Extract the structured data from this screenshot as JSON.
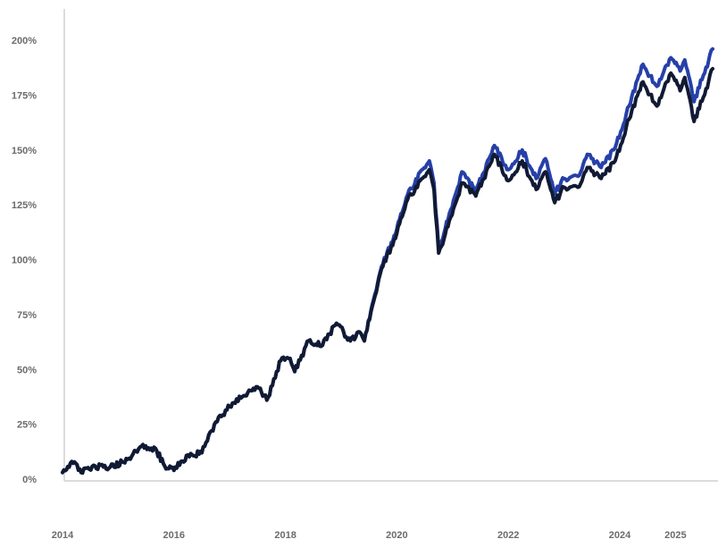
{
  "chart_data": {
    "type": "line",
    "title": "",
    "xlabel": "",
    "ylabel": "",
    "ylim": [
      0,
      200
    ],
    "xlim": [
      "2014-01",
      "2025-09"
    ],
    "grid": false,
    "legend": "none",
    "y_ticks": [
      {
        "value": 0,
        "label": "0%"
      },
      {
        "value": 25,
        "label": "25%"
      },
      {
        "value": 50,
        "label": "50%"
      },
      {
        "value": 75,
        "label": "75%"
      },
      {
        "value": 100,
        "label": "100%"
      },
      {
        "value": 125,
        "label": "125%"
      },
      {
        "value": 150,
        "label": "150%"
      },
      {
        "value": 175,
        "label": "175%"
      },
      {
        "value": 200,
        "label": "200%"
      }
    ],
    "x_ticks": [
      {
        "value": "2014-01",
        "label": "2014"
      },
      {
        "value": "2016-01",
        "label": "2016"
      },
      {
        "value": "2018-01",
        "label": "2018"
      },
      {
        "value": "2020-01",
        "label": "2020"
      },
      {
        "value": "2022-01",
        "label": "2022"
      },
      {
        "value": "2024-01",
        "label": "2024"
      },
      {
        "value": "2025-01",
        "label": "2025"
      }
    ],
    "series": [
      {
        "color": "#2640a8",
        "points": [
          [
            "2014-01",
            3
          ],
          [
            "2014-03",
            8
          ],
          [
            "2014-05",
            3
          ],
          [
            "2014-08",
            6
          ],
          [
            "2014-11",
            5
          ],
          [
            "2015-03",
            9
          ],
          [
            "2015-06",
            15
          ],
          [
            "2015-09",
            14
          ],
          [
            "2015-11",
            6
          ],
          [
            "2016-01",
            4
          ],
          [
            "2016-04",
            11
          ],
          [
            "2016-07",
            12
          ],
          [
            "2016-10",
            26
          ],
          [
            "2017-01",
            33
          ],
          [
            "2017-04",
            38
          ],
          [
            "2017-07",
            42
          ],
          [
            "2017-09",
            36
          ],
          [
            "2017-12",
            54
          ],
          [
            "2018-02",
            55
          ],
          [
            "2018-03",
            49
          ],
          [
            "2018-06",
            63
          ],
          [
            "2018-09",
            61
          ],
          [
            "2018-12",
            71
          ],
          [
            "2019-03",
            63
          ],
          [
            "2019-05",
            67
          ],
          [
            "2019-06",
            63
          ],
          [
            "2019-08",
            82
          ],
          [
            "2019-10",
            98
          ],
          [
            "2020-01",
            114
          ],
          [
            "2020-03",
            128
          ],
          [
            "2020-06",
            140
          ],
          [
            "2020-08",
            145
          ],
          [
            "2020-09",
            135
          ],
          [
            "2020-10",
            105
          ],
          [
            "2020-12",
            118
          ],
          [
            "2021-03",
            140
          ],
          [
            "2021-06",
            131
          ],
          [
            "2021-10",
            152
          ],
          [
            "2022-01",
            141
          ],
          [
            "2022-04",
            150
          ],
          [
            "2022-07",
            137
          ],
          [
            "2022-09",
            146
          ],
          [
            "2022-11",
            130
          ],
          [
            "2023-01",
            137
          ],
          [
            "2023-04",
            138
          ],
          [
            "2023-06",
            148
          ],
          [
            "2023-09",
            142
          ],
          [
            "2023-12",
            151
          ],
          [
            "2024-03",
            170
          ],
          [
            "2024-06",
            189
          ],
          [
            "2024-09",
            179
          ],
          [
            "2024-12",
            192
          ],
          [
            "2025-02",
            186
          ],
          [
            "2025-03",
            191
          ],
          [
            "2025-05",
            172
          ],
          [
            "2025-07",
            184
          ],
          [
            "2025-09",
            196
          ]
        ]
      },
      {
        "color": "#111a33",
        "points": [
          [
            "2014-01",
            3
          ],
          [
            "2014-03",
            8
          ],
          [
            "2014-05",
            3
          ],
          [
            "2014-08",
            6
          ],
          [
            "2014-11",
            5
          ],
          [
            "2015-03",
            9
          ],
          [
            "2015-06",
            15
          ],
          [
            "2015-09",
            14
          ],
          [
            "2015-11",
            6
          ],
          [
            "2016-01",
            4
          ],
          [
            "2016-04",
            11
          ],
          [
            "2016-07",
            12
          ],
          [
            "2016-10",
            26
          ],
          [
            "2017-01",
            33
          ],
          [
            "2017-04",
            38
          ],
          [
            "2017-07",
            42
          ],
          [
            "2017-09",
            36
          ],
          [
            "2017-12",
            54
          ],
          [
            "2018-02",
            55
          ],
          [
            "2018-03",
            49
          ],
          [
            "2018-06",
            63
          ],
          [
            "2018-09",
            61
          ],
          [
            "2018-12",
            71
          ],
          [
            "2019-03",
            63
          ],
          [
            "2019-05",
            67
          ],
          [
            "2019-06",
            63
          ],
          [
            "2019-08",
            81
          ],
          [
            "2019-10",
            97
          ],
          [
            "2020-01",
            112
          ],
          [
            "2020-03",
            126
          ],
          [
            "2020-06",
            136
          ],
          [
            "2020-08",
            141
          ],
          [
            "2020-09",
            132
          ],
          [
            "2020-10",
            103
          ],
          [
            "2020-12",
            115
          ],
          [
            "2021-03",
            135
          ],
          [
            "2021-06",
            129
          ],
          [
            "2021-10",
            148
          ],
          [
            "2022-01",
            136
          ],
          [
            "2022-04",
            145
          ],
          [
            "2022-07",
            132
          ],
          [
            "2022-09",
            140
          ],
          [
            "2022-11",
            126
          ],
          [
            "2023-01",
            133
          ],
          [
            "2023-04",
            133
          ],
          [
            "2023-06",
            142
          ],
          [
            "2023-09",
            137
          ],
          [
            "2023-12",
            145
          ],
          [
            "2024-03",
            164
          ],
          [
            "2024-06",
            181
          ],
          [
            "2024-09",
            170
          ],
          [
            "2024-12",
            185
          ],
          [
            "2025-02",
            177
          ],
          [
            "2025-03",
            183
          ],
          [
            "2025-05",
            163
          ],
          [
            "2025-07",
            174
          ],
          [
            "2025-09",
            187
          ]
        ]
      }
    ]
  }
}
